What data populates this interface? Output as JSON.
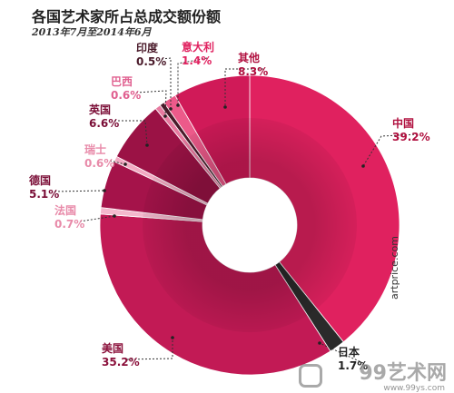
{
  "chart_data": {
    "type": "pie",
    "title": "各国艺术家所占总成交额份额",
    "subtitle": "2013年7月至2014年6月",
    "start_angle_deg": 0,
    "direction": "clockwise",
    "slices": [
      {
        "name": "中国",
        "value": 39.2,
        "label": "39.2%",
        "color": "#e0215f",
        "label_color": "#b0103f"
      },
      {
        "name": "日本",
        "value": 1.7,
        "label": "1.7%",
        "color": "#2a2a2a",
        "label_color": "#222222"
      },
      {
        "name": "美国",
        "value": 35.2,
        "label": "35.2%",
        "color": "#c21a55",
        "label_color": "#8a0f3a"
      },
      {
        "name": "法国",
        "value": 0.7,
        "label": "0.7%",
        "color": "#f4b8cd",
        "label_color": "#e88aa9"
      },
      {
        "name": "德国",
        "value": 5.1,
        "label": "5.1%",
        "color": "#a5134a",
        "label_color": "#7a0d36"
      },
      {
        "name": "瑞士",
        "value": 0.6,
        "label": "0.6%",
        "color": "#f2a9c2",
        "label_color": "#e88aa9"
      },
      {
        "name": "英国",
        "value": 6.6,
        "label": "6.6%",
        "color": "#9b1245",
        "label_color": "#7a0d36"
      },
      {
        "name": "巴西",
        "value": 0.6,
        "label": "0.6%",
        "color": "#e77aa0",
        "label_color": "#e06090"
      },
      {
        "name": "印度",
        "value": 0.5,
        "label": "0.5%",
        "color": "#4a1a2a",
        "label_color": "#4a1a2a"
      },
      {
        "name": "意大利",
        "value": 1.4,
        "label": "1.4%",
        "color": "#ec5a8a",
        "label_color": "#e0215f"
      },
      {
        "name": "其他",
        "value": 8.3,
        "label": "8.3%",
        "color": "#d01a58",
        "label_color": "#b0103f"
      }
    ]
  },
  "watermark": {
    "text": "99艺术网",
    "url": "www.99ys.com"
  },
  "credit": "artprice.com"
}
